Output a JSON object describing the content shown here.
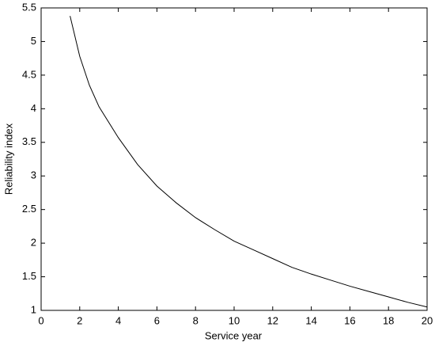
{
  "chart_data": {
    "type": "line",
    "xlabel": "Service year",
    "ylabel": "Reliability index",
    "x": [
      1.5,
      2,
      2.5,
      3,
      4,
      5,
      6,
      7,
      8,
      9,
      10,
      11,
      12,
      13,
      14,
      15,
      16,
      17,
      18,
      19,
      20
    ],
    "series": [
      {
        "color": "#000000",
        "values": [
          5.38,
          4.78,
          4.35,
          4.03,
          3.57,
          3.17,
          2.85,
          2.6,
          2.38,
          2.2,
          2.03,
          1.9,
          1.77,
          1.64,
          1.54,
          1.45,
          1.36,
          1.28,
          1.2,
          1.12,
          1.05
        ]
      }
    ],
    "xlim": [
      0,
      20
    ],
    "xticks": [
      0,
      2,
      4,
      6,
      8,
      10,
      12,
      14,
      16,
      18,
      20
    ],
    "ylim": [
      1,
      5.5
    ],
    "yticks": [
      1,
      1.5,
      2,
      2.5,
      3,
      3.5,
      4,
      4.5,
      5,
      5.5
    ],
    "grid": false
  }
}
